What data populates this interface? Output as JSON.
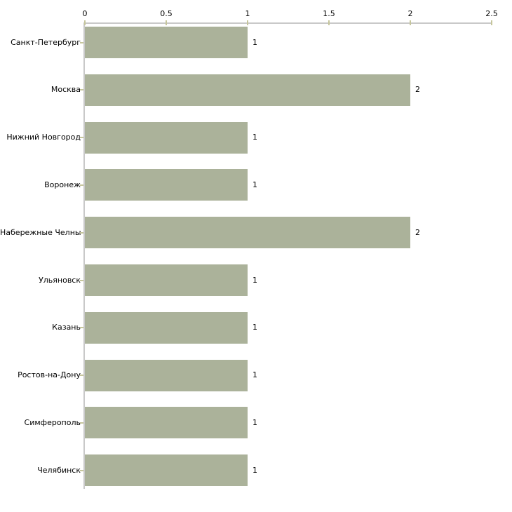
{
  "chart": {
    "background_color": "#ffffff",
    "bar_color": "#abb29a",
    "axis_line_color": "#c9c9c9",
    "tick_mark_color": "#c6c69c",
    "text_color": "#000000"
  },
  "chart_data": {
    "type": "bar",
    "orientation": "horizontal",
    "title": "",
    "xlabel": "",
    "ylabel": "",
    "grid": false,
    "legend": false,
    "x_axis_position": "top",
    "xlim": [
      0,
      2.5
    ],
    "x_ticks": [
      0,
      0.5,
      1,
      1.5,
      2,
      2.5
    ],
    "x_tick_labels": [
      "0",
      "0.5",
      "1",
      "1.5",
      "2",
      "2.5"
    ],
    "categories": [
      "Санкт-Петербург",
      "Москва",
      "Нижний Новгород",
      "Воронеж",
      "Набережные Челны",
      "Ульяновск",
      "Казань",
      "Ростов-на-Дону",
      "Симферополь",
      "Челябинск"
    ],
    "values": [
      1,
      2,
      1,
      1,
      2,
      1,
      1,
      1,
      1,
      1
    ],
    "value_labels": [
      "1",
      "2",
      "1",
      "1",
      "2",
      "1",
      "1",
      "1",
      "1",
      "1"
    ]
  }
}
